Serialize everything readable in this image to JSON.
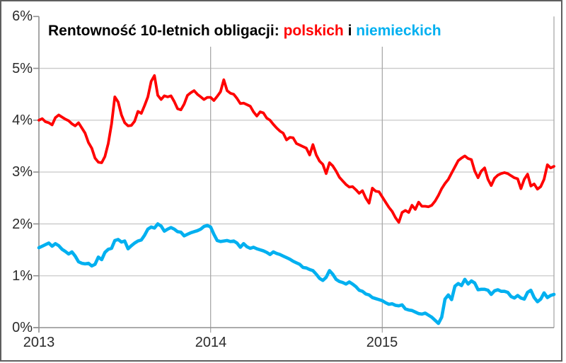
{
  "frame": {
    "background_color": "#ffffff",
    "border_color": "#5f5f5f"
  },
  "chart_data": {
    "type": "line",
    "title": {
      "prefix": "Rentowność 10-letnich obligacji:",
      "series1_label": "polskich",
      "conjunction": "i",
      "series2_label": "niemieckich"
    },
    "title_colors": {
      "prefix": "#000000",
      "conjunction": "#000000"
    },
    "y_axis": {
      "ticks": [
        "6%",
        "5%",
        "4%",
        "3%",
        "2%",
        "1%",
        "0%"
      ],
      "min": 0,
      "max": 6,
      "unit": "%"
    },
    "x_axis": {
      "ticks": [
        "2013",
        "2014",
        "2015"
      ]
    },
    "grid": {
      "horizontal_gridlines": true,
      "vertical_year_gridlines": true,
      "gridline_color": "#c9c9c9",
      "year_line_color": "#a9a9a9",
      "axis_color": "#8f8f8f"
    },
    "series": [
      {
        "name": "polskich",
        "color": "#ff0000",
        "stroke_width": 3.8,
        "values": [
          4.0,
          4.03,
          3.97,
          3.95,
          3.91,
          4.05,
          4.1,
          4.06,
          4.02,
          3.99,
          3.93,
          3.89,
          3.95,
          3.85,
          3.75,
          3.57,
          3.46,
          3.27,
          3.19,
          3.18,
          3.3,
          3.55,
          3.93,
          4.45,
          4.35,
          4.1,
          3.95,
          3.89,
          3.9,
          3.98,
          4.17,
          4.13,
          4.28,
          4.45,
          4.75,
          4.86,
          4.48,
          4.4,
          4.47,
          4.45,
          4.47,
          4.36,
          4.22,
          4.2,
          4.31,
          4.48,
          4.53,
          4.57,
          4.5,
          4.45,
          4.4,
          4.44,
          4.44,
          4.38,
          4.46,
          4.55,
          4.78,
          4.57,
          4.52,
          4.5,
          4.42,
          4.32,
          4.33,
          4.3,
          4.27,
          4.16,
          4.08,
          4.16,
          4.14,
          4.04,
          4.0,
          3.92,
          3.85,
          3.79,
          3.75,
          3.62,
          3.67,
          3.66,
          3.55,
          3.52,
          3.49,
          3.46,
          3.33,
          3.53,
          3.33,
          3.21,
          3.15,
          2.97,
          3.18,
          3.12,
          3.02,
          2.9,
          2.83,
          2.76,
          2.71,
          2.72,
          2.66,
          2.59,
          2.64,
          2.5,
          2.4,
          2.69,
          2.63,
          2.62,
          2.52,
          2.42,
          2.32,
          2.24,
          2.12,
          2.03,
          2.22,
          2.26,
          2.22,
          2.36,
          2.28,
          2.42,
          2.34,
          2.34,
          2.33,
          2.36,
          2.44,
          2.55,
          2.68,
          2.78,
          2.86,
          2.98,
          3.1,
          3.22,
          3.27,
          3.31,
          3.26,
          3.24,
          3.02,
          2.89,
          3.02,
          3.08,
          2.86,
          2.74,
          2.88,
          2.94,
          2.97,
          2.99,
          2.97,
          2.93,
          2.89,
          2.87,
          2.68,
          2.86,
          2.96,
          2.73,
          2.77,
          2.67,
          2.72,
          2.86,
          3.14,
          3.08,
          3.11
        ]
      },
      {
        "name": "niemieckich",
        "color": "#00b0f0",
        "stroke_width": 4.6,
        "values": [
          1.54,
          1.57,
          1.6,
          1.63,
          1.57,
          1.62,
          1.58,
          1.51,
          1.47,
          1.42,
          1.46,
          1.38,
          1.27,
          1.24,
          1.23,
          1.24,
          1.19,
          1.22,
          1.36,
          1.31,
          1.45,
          1.51,
          1.53,
          1.68,
          1.7,
          1.65,
          1.67,
          1.52,
          1.58,
          1.63,
          1.67,
          1.69,
          1.78,
          1.9,
          1.94,
          1.92,
          2.0,
          1.96,
          1.86,
          1.9,
          1.93,
          1.9,
          1.85,
          1.84,
          1.77,
          1.8,
          1.83,
          1.85,
          1.87,
          1.9,
          1.95,
          1.97,
          1.94,
          1.8,
          1.68,
          1.66,
          1.67,
          1.68,
          1.66,
          1.67,
          1.63,
          1.55,
          1.62,
          1.56,
          1.53,
          1.55,
          1.52,
          1.5,
          1.48,
          1.45,
          1.41,
          1.46,
          1.43,
          1.41,
          1.38,
          1.35,
          1.32,
          1.28,
          1.25,
          1.22,
          1.16,
          1.15,
          1.12,
          1.1,
          1.03,
          0.95,
          0.91,
          0.97,
          1.1,
          1.03,
          0.93,
          0.89,
          0.87,
          0.84,
          0.88,
          0.84,
          0.79,
          0.72,
          0.7,
          0.65,
          0.63,
          0.58,
          0.56,
          0.54,
          0.52,
          0.48,
          0.45,
          0.46,
          0.43,
          0.42,
          0.44,
          0.36,
          0.34,
          0.33,
          0.3,
          0.27,
          0.26,
          0.28,
          0.24,
          0.2,
          0.14,
          0.08,
          0.2,
          0.55,
          0.63,
          0.54,
          0.8,
          0.85,
          0.81,
          0.93,
          0.84,
          0.9,
          0.86,
          0.73,
          0.74,
          0.74,
          0.72,
          0.64,
          0.71,
          0.73,
          0.7,
          0.7,
          0.68,
          0.6,
          0.57,
          0.62,
          0.57,
          0.55,
          0.68,
          0.72,
          0.58,
          0.5,
          0.55,
          0.67,
          0.58,
          0.62,
          0.64
        ]
      }
    ]
  }
}
